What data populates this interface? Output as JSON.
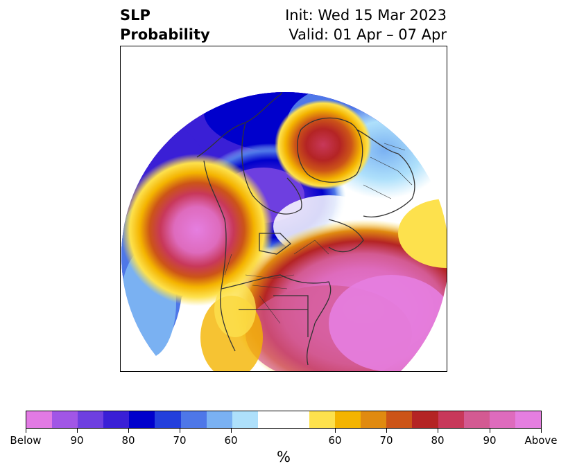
{
  "title": {
    "left_line1": "SLP",
    "left_line2": "Probability",
    "right_line1": "Init: Wed 15 Mar 2023",
    "right_line2": "Valid: 01 Apr – 07 Apr"
  },
  "colorbar": {
    "colors": [
      "#e27ae4",
      "#a156e6",
      "#6e3fe0",
      "#3a1fd6",
      "#0000cc",
      "#233fdc",
      "#4e77e8",
      "#7ab1f2",
      "#aee0fb",
      "#ffffff",
      "#ffffff",
      "#fde14d",
      "#f4b400",
      "#e08a10",
      "#cc5418",
      "#b42424",
      "#c8385a",
      "#d35a92",
      "#de6bbd",
      "#e57ee0"
    ],
    "tick_labels": [
      "Below",
      "90",
      "80",
      "70",
      "60",
      "60",
      "70",
      "80",
      "90",
      "Above"
    ],
    "unit_label": "%"
  },
  "map": {
    "projection": "north-polar-stereographic",
    "high_probability_color": "#e57ee0",
    "low_probability_color": "#6e3fe0"
  }
}
